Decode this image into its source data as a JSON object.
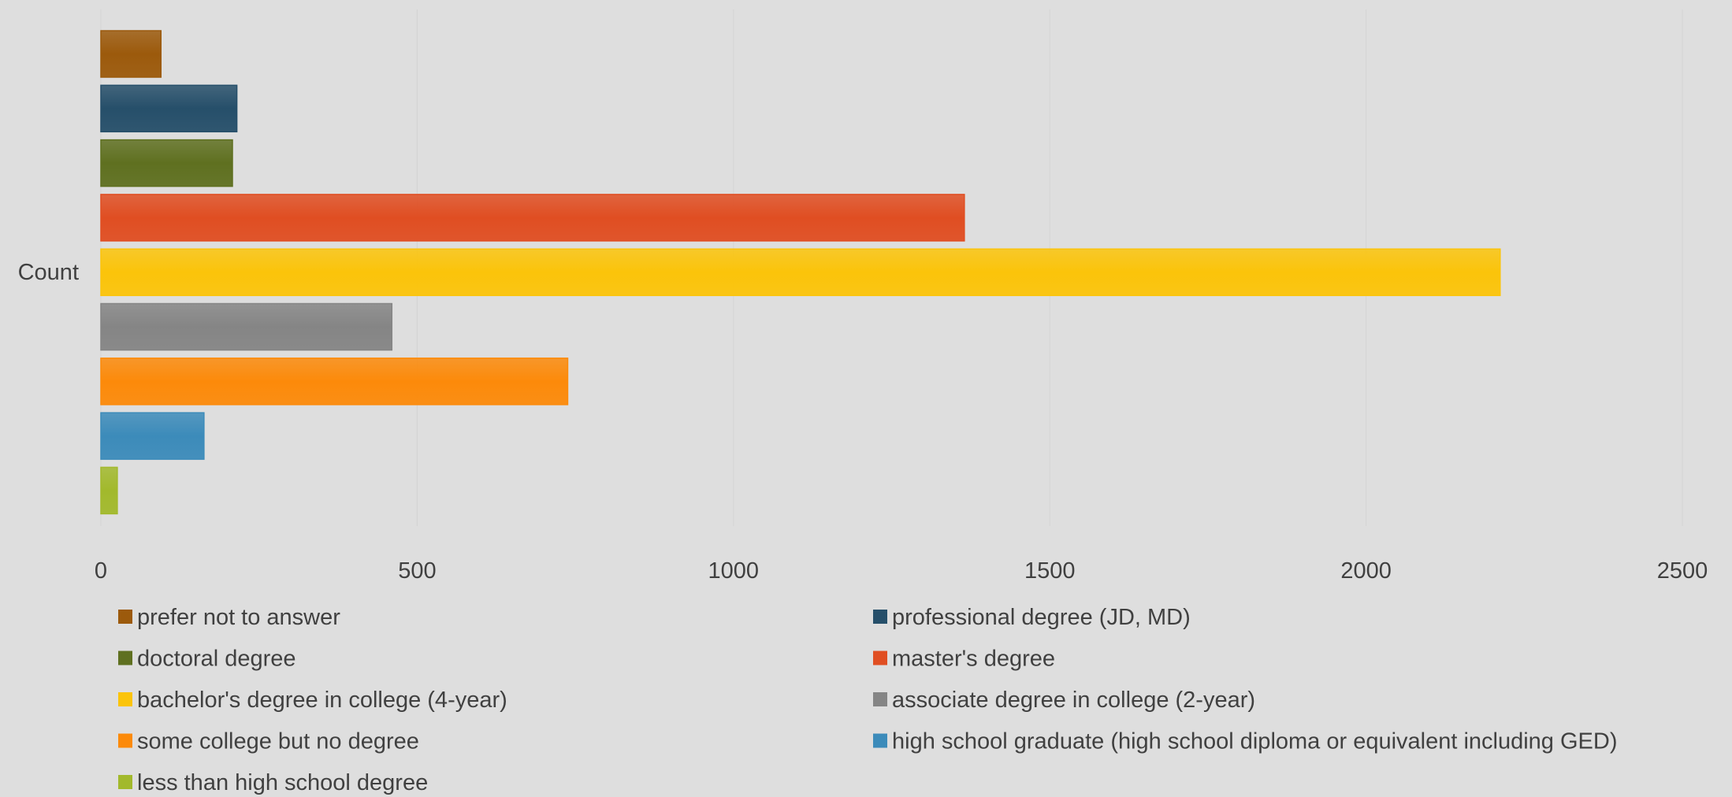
{
  "chart_data": {
    "type": "bar",
    "orientation": "horizontal",
    "categories": [
      "Count"
    ],
    "ylabel": "Count",
    "xlim": [
      0,
      2500
    ],
    "x_ticks": [
      0,
      500,
      1000,
      1500,
      2000,
      2500
    ],
    "grid": true,
    "legend_position": "bottom",
    "series": [
      {
        "name": "prefer not to answer",
        "values": [
          95
        ],
        "color": "#9c5a0c"
      },
      {
        "name": "professional degree (JD, MD)",
        "values": [
          215
        ],
        "color": "#264f6a"
      },
      {
        "name": "doctoral degree",
        "values": [
          208
        ],
        "color": "#5f7020"
      },
      {
        "name": "master's degree",
        "values": [
          1365
        ],
        "color": "#e04e22"
      },
      {
        "name": "bachelor's degree in college (4-year)",
        "values": [
          2212
        ],
        "color": "#fbc40a"
      },
      {
        "name": "associate degree in college (2-year)",
        "values": [
          460
        ],
        "color": "#858585"
      },
      {
        "name": "some college but no degree",
        "values": [
          738
        ],
        "color": "#fc8a0a"
      },
      {
        "name": "high school graduate (high school diploma or equivalent including GED)",
        "values": [
          163
        ],
        "color": "#3c8bba"
      },
      {
        "name": "less than high school degree",
        "values": [
          26
        ],
        "color": "#a2b92c"
      }
    ]
  }
}
